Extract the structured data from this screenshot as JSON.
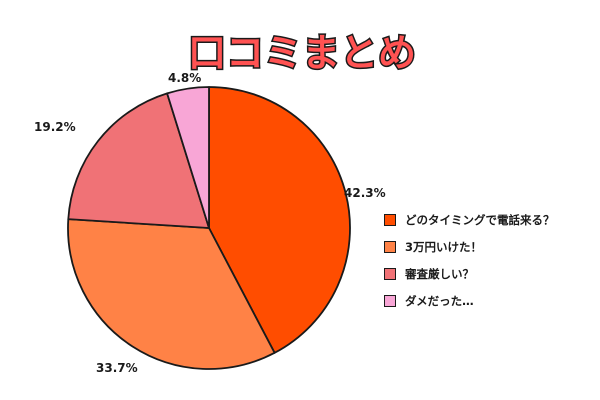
{
  "chart_data": {
    "type": "pie",
    "title": "口コミまとめ",
    "slices": [
      {
        "label": "どのタイミングで電話来る？",
        "value": 42.3,
        "display": "42.3%",
        "color": "#FF4D00"
      },
      {
        "label": "3万円いけた！",
        "value": 33.7,
        "display": "33.7%",
        "color": "#FF8246"
      },
      {
        "label": "審査厳しい？",
        "value": 19.2,
        "display": "19.2%",
        "color": "#F07276"
      },
      {
        "label": "ダメだった…",
        "value": 4.8,
        "display": "4.8%",
        "color": "#F8A6D6"
      }
    ],
    "legend_position": "right"
  },
  "title_colors": {
    "fill": "#FF5252",
    "outline": "#1a1a1a"
  }
}
